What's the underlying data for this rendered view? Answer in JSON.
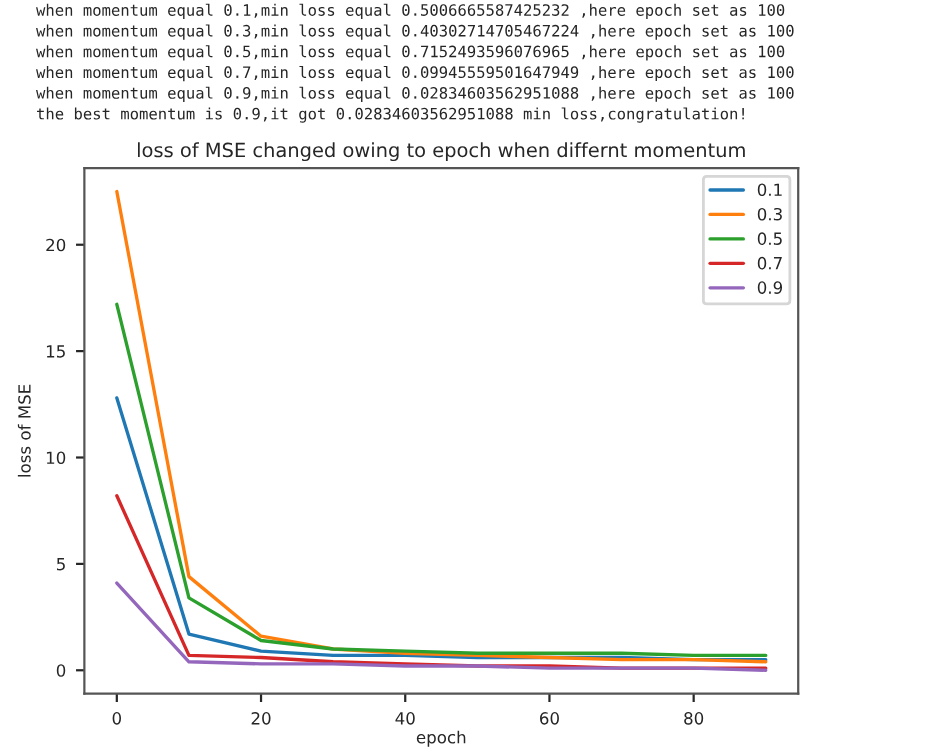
{
  "chart_data": {
    "type": "line",
    "title": "loss of MSE changed owing to epoch when differnt momentum",
    "xlabel": "epoch",
    "ylabel": "loss of MSE",
    "annotations": [
      "when momentum equal 0.1,min loss equal 0.5006665587425232 ,here epoch set as 100",
      "when momentum equal 0.3,min loss equal 0.40302714705467224 ,here epoch set as 100",
      "when momentum equal 0.5,min loss equal 0.7152493596076965 ,here epoch set as 100",
      "when momentum equal 0.7,min loss equal 0.09945559501647949 ,here epoch set as 100",
      "when momentum equal 0.9,min loss equal 0.02834603562951088 ,here epoch set as 100",
      "the best momentum is 0.9,it got 0.02834603562951088 min loss,congratulation!"
    ],
    "x": [
      0,
      10,
      20,
      30,
      40,
      50,
      60,
      70,
      80,
      90
    ],
    "series": [
      {
        "name": "0.1",
        "color": "#1f77b4",
        "values": [
          12.8,
          1.7,
          0.9,
          0.7,
          0.7,
          0.6,
          0.6,
          0.6,
          0.5,
          0.5
        ]
      },
      {
        "name": "0.3",
        "color": "#ff7f0e",
        "values": [
          22.5,
          4.4,
          1.6,
          1.0,
          0.8,
          0.7,
          0.6,
          0.5,
          0.5,
          0.4
        ]
      },
      {
        "name": "0.5",
        "color": "#2ca02c",
        "values": [
          17.2,
          3.4,
          1.4,
          1.0,
          0.9,
          0.8,
          0.8,
          0.8,
          0.7,
          0.7
        ]
      },
      {
        "name": "0.7",
        "color": "#d62728",
        "values": [
          8.2,
          0.7,
          0.6,
          0.4,
          0.3,
          0.2,
          0.2,
          0.1,
          0.1,
          0.1
        ]
      },
      {
        "name": "0.9",
        "color": "#9467bd",
        "values": [
          4.1,
          0.4,
          0.3,
          0.3,
          0.2,
          0.2,
          0.1,
          0.1,
          0.1,
          0.0
        ]
      }
    ],
    "xlim": [
      -4.5,
      94.5
    ],
    "ylim": [
      -1.1,
      23.6
    ],
    "xticks": [
      0,
      20,
      40,
      60,
      80
    ],
    "yticks": [
      0,
      5,
      10,
      15,
      20
    ],
    "legend": "top right",
    "grid": false,
    "marker": "none",
    "line_style": "solid"
  }
}
